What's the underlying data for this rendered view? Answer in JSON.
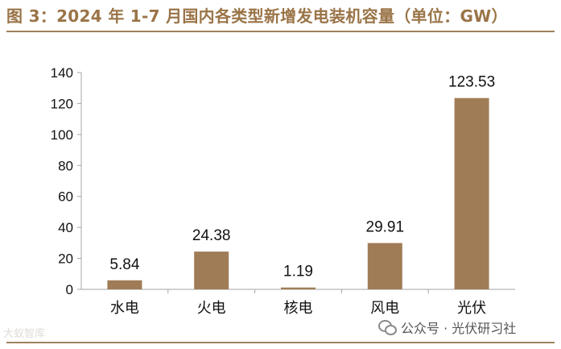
{
  "title": "图 3：2024 年 1-7 月国内各类型新增发电装机容量（单位：GW）",
  "watermark_left": "大蚁智库",
  "watermark_right": "公众号 · 光伏研习社",
  "icons": [
    "wechat-icon"
  ],
  "colors": {
    "bar": "#a07c56",
    "title": "#9a7447",
    "rule": "#a0825e"
  },
  "chart_data": {
    "type": "bar",
    "title": "图 3：2024 年 1-7 月国内各类型新增发电装机容量（单位：GW）",
    "categories": [
      "水电",
      "火电",
      "核电",
      "风电",
      "光伏"
    ],
    "values": [
      5.84,
      24.38,
      1.19,
      29.91,
      123.53
    ],
    "data_labels": [
      "5.84",
      "24.38",
      "1.19",
      "29.91",
      "123.53"
    ],
    "yticks": [
      "0",
      "20",
      "40",
      "60",
      "80",
      "100",
      "120",
      "140"
    ],
    "ylim": [
      0,
      140
    ],
    "xlabel": "",
    "ylabel": "",
    "grid": false,
    "legend": "none"
  }
}
